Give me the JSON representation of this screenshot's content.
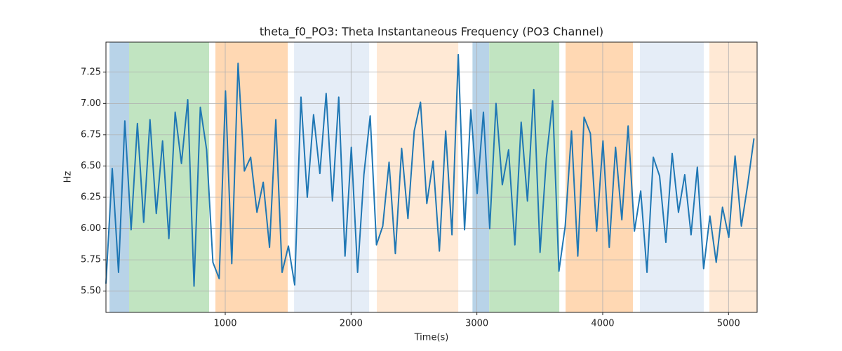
{
  "chart_data": {
    "type": "line",
    "title": "theta_f0_PO3: Theta Instantaneous Frequency (PO3 Channel)",
    "x_label": "Time(s)",
    "y_label": "Hz",
    "xlim": [
      52,
      5227
    ],
    "ylim": [
      5.33,
      7.49
    ],
    "xticks": [
      1000,
      2000,
      3000,
      4000,
      5000
    ],
    "yticks": [
      {
        "value": 5.5,
        "label": "5.50"
      },
      5.75,
      {
        "value": 6.0,
        "label": "6.00"
      },
      6.25,
      {
        "value": 6.5,
        "label": "6.50"
      },
      6.75,
      {
        "value": 7.0,
        "label": "7.00"
      },
      7.25
    ],
    "grid": true,
    "spans": [
      {
        "start": 80,
        "end": 236,
        "color": "#b8d3e8"
      },
      {
        "start": 236,
        "end": 872,
        "color": "#c1e4c1"
      },
      {
        "start": 922,
        "end": 1497,
        "color": "#ffd8b3"
      },
      {
        "start": 1547,
        "end": 2144,
        "color": "#e5edf7"
      },
      {
        "start": 2205,
        "end": 2852,
        "color": "#ffe9d5"
      },
      {
        "start": 2965,
        "end": 3098,
        "color": "#b8d3e8"
      },
      {
        "start": 3098,
        "end": 3655,
        "color": "#c1e4c1"
      },
      {
        "start": 3705,
        "end": 4240,
        "color": "#ffd8b3"
      },
      {
        "start": 4296,
        "end": 4803,
        "color": "#e5edf7"
      },
      {
        "start": 4848,
        "end": 5227,
        "color": "#ffe9d5"
      }
    ],
    "x": [
      52,
      102,
      152,
      202,
      252,
      302,
      352,
      402,
      452,
      502,
      552,
      602,
      652,
      702,
      752,
      802,
      852,
      902,
      952,
      1002,
      1052,
      1102,
      1152,
      1202,
      1252,
      1302,
      1352,
      1402,
      1452,
      1502,
      1552,
      1602,
      1652,
      1702,
      1752,
      1802,
      1852,
      1902,
      1952,
      2002,
      2052,
      2102,
      2152,
      2202,
      2252,
      2302,
      2352,
      2402,
      2452,
      2502,
      2552,
      2602,
      2652,
      2702,
      2752,
      2802,
      2852,
      2902,
      2952,
      3002,
      3052,
      3102,
      3152,
      3202,
      3252,
      3302,
      3352,
      3402,
      3452,
      3502,
      3552,
      3602,
      3652,
      3702,
      3752,
      3802,
      3852,
      3902,
      3952,
      4002,
      4052,
      4102,
      4152,
      4202,
      4252,
      4302,
      4352,
      4402,
      4452,
      4502,
      4552,
      4602,
      4652,
      4702,
      4752,
      4802,
      4852,
      4902,
      4952,
      5002,
      5052,
      5102,
      5152,
      5202
    ],
    "series": [
      {
        "color": "#1f77b4",
        "values": [
          5.56,
          6.48,
          5.65,
          6.86,
          5.99,
          6.84,
          6.05,
          6.87,
          6.12,
          6.7,
          5.92,
          6.93,
          6.52,
          7.03,
          5.54,
          6.97,
          6.63,
          5.73,
          5.6,
          7.1,
          5.72,
          7.32,
          6.46,
          6.57,
          6.13,
          6.37,
          5.85,
          6.87,
          5.65,
          5.86,
          5.55,
          7.05,
          6.25,
          6.91,
          6.44,
          7.08,
          6.22,
          7.05,
          5.78,
          6.65,
          5.65,
          6.43,
          6.9,
          5.87,
          6.02,
          6.53,
          5.8,
          6.64,
          6.08,
          6.78,
          7.01,
          6.2,
          6.54,
          5.82,
          6.78,
          5.95,
          7.39,
          5.99,
          6.95,
          6.28,
          6.93,
          6.0,
          7.0,
          6.35,
          6.63,
          5.87,
          6.85,
          6.22,
          7.11,
          5.81,
          6.56,
          7.02,
          5.66,
          6.02,
          6.78,
          5.78,
          6.89,
          6.76,
          5.98,
          6.7,
          5.85,
          6.65,
          6.07,
          6.82,
          5.98,
          6.3,
          5.65,
          6.57,
          6.42,
          5.89,
          6.6,
          6.13,
          6.43,
          5.95,
          6.49,
          5.68,
          6.1,
          5.73,
          6.17,
          5.93,
          6.58,
          6.02,
          6.35,
          6.72
        ]
      }
    ]
  }
}
